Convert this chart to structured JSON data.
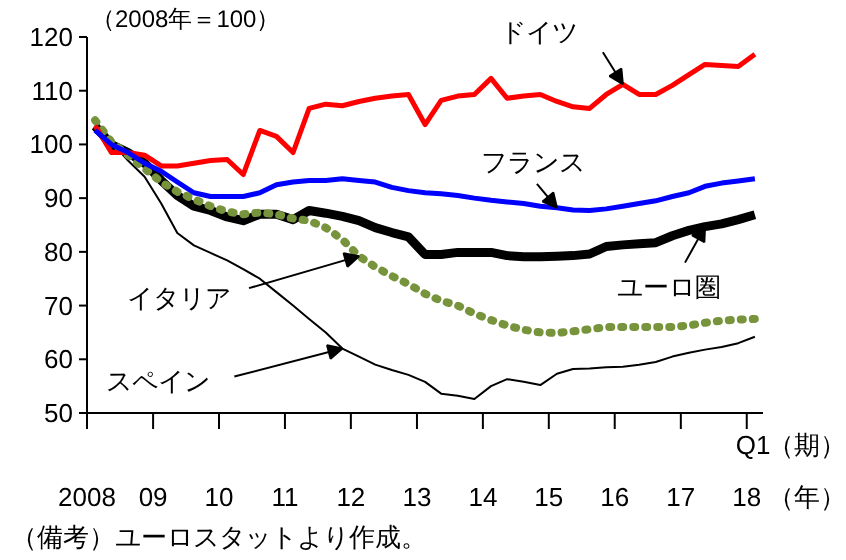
{
  "chart_data": {
    "type": "line",
    "ylabel": "（2008年＝100）",
    "x": [
      "2008-02-15",
      "2008-05-15",
      "2008-08-15",
      "2008-11-15",
      "2009-02-15",
      "2009-05-15",
      "2009-08-15",
      "2009-11-15",
      "2010-02-15",
      "2010-05-15",
      "2010-08-15",
      "2010-11-15",
      "2011-02-15",
      "2011-05-15",
      "2011-08-15",
      "2011-11-15",
      "2012-02-15",
      "2012-05-15",
      "2012-08-15",
      "2012-11-15",
      "2013-02-15",
      "2013-05-15",
      "2013-08-15",
      "2013-11-15",
      "2014-02-15",
      "2014-05-15",
      "2014-08-15",
      "2014-11-15",
      "2015-02-15",
      "2015-05-15",
      "2015-08-15",
      "2015-11-15",
      "2016-02-15",
      "2016-05-15",
      "2016-08-15",
      "2016-11-15",
      "2017-02-15",
      "2017-05-15",
      "2017-08-15",
      "2017-11-15",
      "2018-02-15"
    ],
    "series": [
      {
        "color": "#000000",
        "line_style": "solid",
        "values": [
          103.4,
          100,
          98.5,
          96.5,
          93.3,
          90.5,
          88.5,
          87.7,
          86.5,
          85.8,
          87,
          87,
          86,
          87.7,
          87.2,
          86.6,
          85.8,
          84.5,
          83.6,
          82.8,
          79.5,
          79.5,
          79.9,
          79.9,
          79.9,
          79.3,
          79.1,
          79.1,
          79.2,
          79.3,
          79.6,
          81,
          81.3,
          81.5,
          81.7,
          83,
          84,
          84.7,
          85.2,
          86,
          86.9
        ]
      },
      {
        "color": "#000000",
        "line_style": "solid",
        "values": [
          103.7,
          100.5,
          97,
          94,
          89,
          83.5,
          81.2,
          79.8,
          78.4,
          76.8,
          75,
          72.5,
          70,
          67.5,
          65,
          62,
          60.5,
          59,
          58,
          57.1,
          55.8,
          53.6,
          53.2,
          52.6,
          55,
          56.3,
          55.8,
          55.2,
          57.3,
          58.2,
          58.3,
          58.5,
          58.6,
          59,
          59.5,
          60.5,
          61.2,
          61.8,
          62.3,
          63,
          64.2
        ]
      },
      {
        "color": "#77933c",
        "line_style": "dotted",
        "values": [
          104.5,
          100.5,
          98,
          95.5,
          93,
          91.2,
          89.8,
          88.5,
          87.5,
          87,
          87.3,
          87,
          86.2,
          85.8,
          84.5,
          82.3,
          79.2,
          77.2,
          75.5,
          74,
          72.2,
          70.9,
          70,
          68.5,
          67.3,
          66.3,
          65.5,
          65,
          64.9,
          65.2,
          65.6,
          66,
          66,
          66,
          66,
          66,
          66.3,
          66.8,
          67.2,
          67.4,
          67.5
        ]
      },
      {
        "color": "#ff0000",
        "line_style": "solid",
        "values": [
          103.5,
          98.5,
          98.5,
          98,
          96,
          96,
          96.5,
          97,
          97.2,
          94.4,
          102.6,
          101.5,
          98.5,
          106.7,
          107.5,
          107.2,
          108,
          108.6,
          109,
          109.3,
          103.7,
          108.2,
          109,
          109.3,
          112.3,
          108.6,
          109,
          109.3,
          108,
          107,
          106.7,
          109.3,
          111.2,
          109.3,
          109.3,
          111,
          113,
          114.9,
          114.7,
          114.5,
          116.8
        ]
      },
      {
        "color": "#0000ff",
        "line_style": "solid",
        "values": [
          102.6,
          100,
          98.5,
          96.5,
          95,
          93,
          91,
          90.3,
          90.3,
          90.3,
          91,
          92.5,
          93,
          93.3,
          93.3,
          93.6,
          93.3,
          93,
          92,
          91.4,
          91,
          90.8,
          90.5,
          90,
          89.6,
          89.3,
          89,
          88.5,
          88.2,
          87.8,
          87.7,
          88,
          88.5,
          89,
          89.5,
          90.3,
          91,
          92.2,
          92.8,
          93.2,
          93.6
        ]
      }
    ],
    "xlim": [
      "2008-01-01",
      "2018-04-01"
    ],
    "xticks": [
      {
        "value": "2008-01-01",
        "label": "2008"
      },
      {
        "value": "2009-01-01",
        "label": "09"
      },
      {
        "value": "2010-01-01",
        "label": "10"
      },
      {
        "value": "2011-01-01",
        "label": "11"
      },
      {
        "value": "2012-01-01",
        "label": "12"
      },
      {
        "value": "2013-01-01",
        "label": "13"
      },
      {
        "value": "2014-01-01",
        "label": "14"
      },
      {
        "value": "2015-01-01",
        "label": "15"
      },
      {
        "value": "2016-01-01",
        "label": "16"
      },
      {
        "value": "2017-01-01",
        "label": "17"
      },
      {
        "value": "2018-01-01",
        "label": "18"
      }
    ],
    "ylim": [
      50,
      120
    ],
    "yticks": [
      50,
      60,
      70,
      80,
      90,
      100,
      110,
      120
    ],
    "annotations": [
      {
        "text": "ドイツ",
        "x": "2016-02-15",
        "y": 111.2
      },
      {
        "text": "フランス",
        "x": "2015-02-15",
        "y": 88.2
      },
      {
        "text": "ユーロ圏",
        "x": "2017-05-15",
        "y": 84.7
      },
      {
        "text": "イタリア",
        "x": "2012-02-15",
        "y": 79.2
      },
      {
        "text": "スペイン",
        "x": "2011-11-15",
        "y": 62
      },
      "（備考）ユーロスタットより作成。",
      "Q1",
      "（期）",
      "（年）"
    ]
  }
}
